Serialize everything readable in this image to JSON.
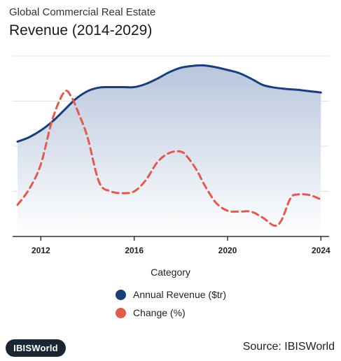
{
  "header": {
    "subtitle": "Global Commercial Real Estate",
    "title": "Revenue (2014-2029)"
  },
  "chart_data": {
    "type": "area",
    "title": "Revenue (2014-2029)",
    "subtitle": "Global Commercial Real Estate",
    "xlabel": "Category",
    "ylabel": "",
    "xlim": [
      2011,
      2024.2
    ],
    "ylim": [
      0,
      4
    ],
    "x_ticks": [
      2012,
      2016,
      2020,
      2024
    ],
    "grid": "horizontal",
    "legend_position": "bottom",
    "series": [
      {
        "name": "Annual Revenue ($tr)",
        "style": "area-line",
        "color": "#1a3d7c",
        "x": [
          2011,
          2011.5,
          2012,
          2012.5,
          2013,
          2013.5,
          2014,
          2014.5,
          2015,
          2015.5,
          2016,
          2016.5,
          2017,
          2017.5,
          2018,
          2018.5,
          2019,
          2019.5,
          2020,
          2020.5,
          2021,
          2021.5,
          2022,
          2022.5,
          2023,
          2023.5,
          2024
        ],
        "values": [
          2.1,
          2.2,
          2.35,
          2.55,
          2.8,
          3.05,
          3.22,
          3.3,
          3.31,
          3.31,
          3.31,
          3.38,
          3.5,
          3.64,
          3.74,
          3.78,
          3.79,
          3.75,
          3.69,
          3.62,
          3.5,
          3.36,
          3.3,
          3.27,
          3.25,
          3.22,
          3.19
        ]
      },
      {
        "name": "Change (%)",
        "style": "dashed-line",
        "color": "#e05a4e",
        "x": [
          2011,
          2011.5,
          2012,
          2012.5,
          2013,
          2013.3,
          2013.6,
          2014,
          2014.5,
          2015,
          2015.5,
          2016,
          2016.5,
          2017,
          2017.5,
          2018,
          2018.3,
          2018.7,
          2019,
          2019.5,
          2020,
          2020.5,
          2021,
          2021.5,
          2022,
          2022.3,
          2022.7,
          2023,
          2023.5,
          2024
        ],
        "values": [
          0.7,
          1.05,
          1.6,
          2.6,
          3.2,
          3.1,
          2.75,
          2.2,
          1.2,
          1.0,
          0.96,
          1.0,
          1.25,
          1.65,
          1.85,
          1.88,
          1.75,
          1.45,
          1.15,
          0.75,
          0.57,
          0.55,
          0.55,
          0.42,
          0.24,
          0.35,
          0.85,
          0.93,
          0.92,
          0.82
        ]
      }
    ]
  },
  "legend": {
    "items": [
      {
        "label": "Annual Revenue ($tr)",
        "color": "#1a3d7c"
      },
      {
        "label": "Change (%)",
        "color": "#e05a4e"
      }
    ]
  },
  "footer": {
    "logo": "IBISWorld",
    "source": "Source: IBISWorld"
  }
}
